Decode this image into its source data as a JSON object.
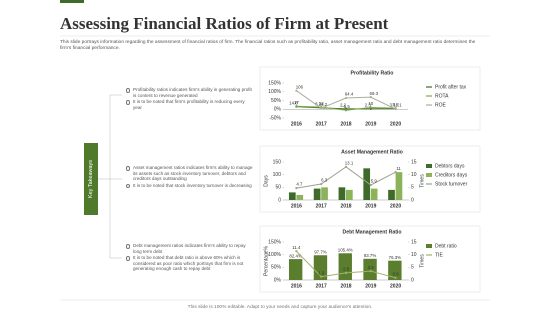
{
  "header": {
    "title": "Assessing Financial Ratios of Firm at Present",
    "description": "This slide portrays information regarding the assessment of financial ratios of firm. The financial ratios such as profitability ratio, asset management ratio and debt management ratio determines the firm's financial performance."
  },
  "sidebar_label": "Key Takeaways",
  "takeaways": [
    [
      "Profitability ratios indicates firm's ability in generating profit is content to revenue generated",
      "It is to be noted that firm's profitability is reducing every year"
    ],
    [
      "Asset management ratios indicates firm's ability to manage its assets such as stock inventory turnover, debtors and creditors days outstanding",
      "It is to be noted that stock inventory turnover is decreasing"
    ],
    [
      "Debt management ratios indicates firm's ability to repay long term debt",
      "It is to be noted that debt ratio is above 60% which is considered as poor ratio which portrays that firm is not generating enough cash to repay debt"
    ]
  ],
  "chart_data": [
    {
      "type": "line",
      "title": "Profitability Ratio",
      "categories": [
        "2016",
        "2017",
        "2018",
        "2019",
        "2020"
      ],
      "series": [
        {
          "name": "Profit after tax",
          "color": "#3f6b2a",
          "values": [
            14.8,
            8.2,
            2.2,
            2.3,
            3.1
          ]
        },
        {
          "name": "ROTA",
          "color": "#79a843",
          "values": [
            17,
            12,
            -5.5,
            10,
            5.8
          ]
        },
        {
          "name": "ROE",
          "color": "#a7b09c",
          "values": [
            106,
            6.2,
            64.4,
            69.3,
            1.1
          ]
        }
      ],
      "ylim": [
        -50,
        150
      ],
      "yticks": [
        {
          "value": -50,
          "label": "-50%"
        },
        {
          "value": 0,
          "label": "0%"
        },
        {
          "value": 50,
          "label": "50%"
        },
        {
          "value": 100,
          "label": "100%"
        },
        {
          "value": 150,
          "label": "150%"
        }
      ]
    },
    {
      "type": "combo",
      "title": "Asset Management Ratio",
      "ylabel": "Days",
      "y2label": "Times",
      "categories": [
        "2016",
        "2017",
        "2018",
        "2019",
        "2020"
      ],
      "series": [
        {
          "name": "Debtors days",
          "color": "#3f6b2a",
          "kind": "bar",
          "values": [
            30,
            45,
            50,
            125,
            40
          ]
        },
        {
          "name": "Creditors days",
          "color": "#8cb35a",
          "kind": "bar",
          "values": [
            20,
            50,
            40,
            45,
            110
          ]
        },
        {
          "name": "Stock turnover",
          "color": "#9aa38a",
          "kind": "line",
          "axis": "y2",
          "values": [
            4.7,
            6.3,
            13.1,
            5.9,
            11
          ]
        }
      ],
      "ylim": [
        0,
        150
      ],
      "yticks": [
        0,
        50,
        100,
        150
      ],
      "y2lim": [
        0,
        15
      ],
      "y2ticks": [
        0,
        5,
        10,
        15
      ]
    },
    {
      "type": "combo",
      "title": "Debt Management Ratio",
      "ylabel": "Percentage%",
      "y2label": "Times",
      "categories": [
        "2016",
        "2017",
        "2018",
        "2019",
        "2020"
      ],
      "series": [
        {
          "name": "Debt ratio",
          "color": "#5a7d2e",
          "kind": "bar",
          "values": [
            82.4,
            97.7,
            105.4,
            83.7,
            76.3
          ],
          "value_labels": [
            "82.4%",
            "97.7%",
            "105.4%",
            "83.7%",
            "76.3%"
          ]
        },
        {
          "name": "TIE",
          "color": "#9fb36a",
          "kind": "line",
          "axis": "y2",
          "values": [
            11.4,
            1.3,
            2.8,
            3.5,
            0.9
          ]
        }
      ],
      "ylim": [
        0,
        150
      ],
      "yticks": [
        {
          "value": 0,
          "label": "0%"
        },
        {
          "value": 50,
          "label": "50%"
        },
        {
          "value": 100,
          "label": "100%"
        },
        {
          "value": 150,
          "label": "150%"
        }
      ],
      "y2lim": [
        0,
        15
      ],
      "y2ticks": [
        0,
        5,
        10,
        15
      ]
    }
  ],
  "footer": "This slide is 100% editable. Adapt to your needs and capture your audience's attention."
}
